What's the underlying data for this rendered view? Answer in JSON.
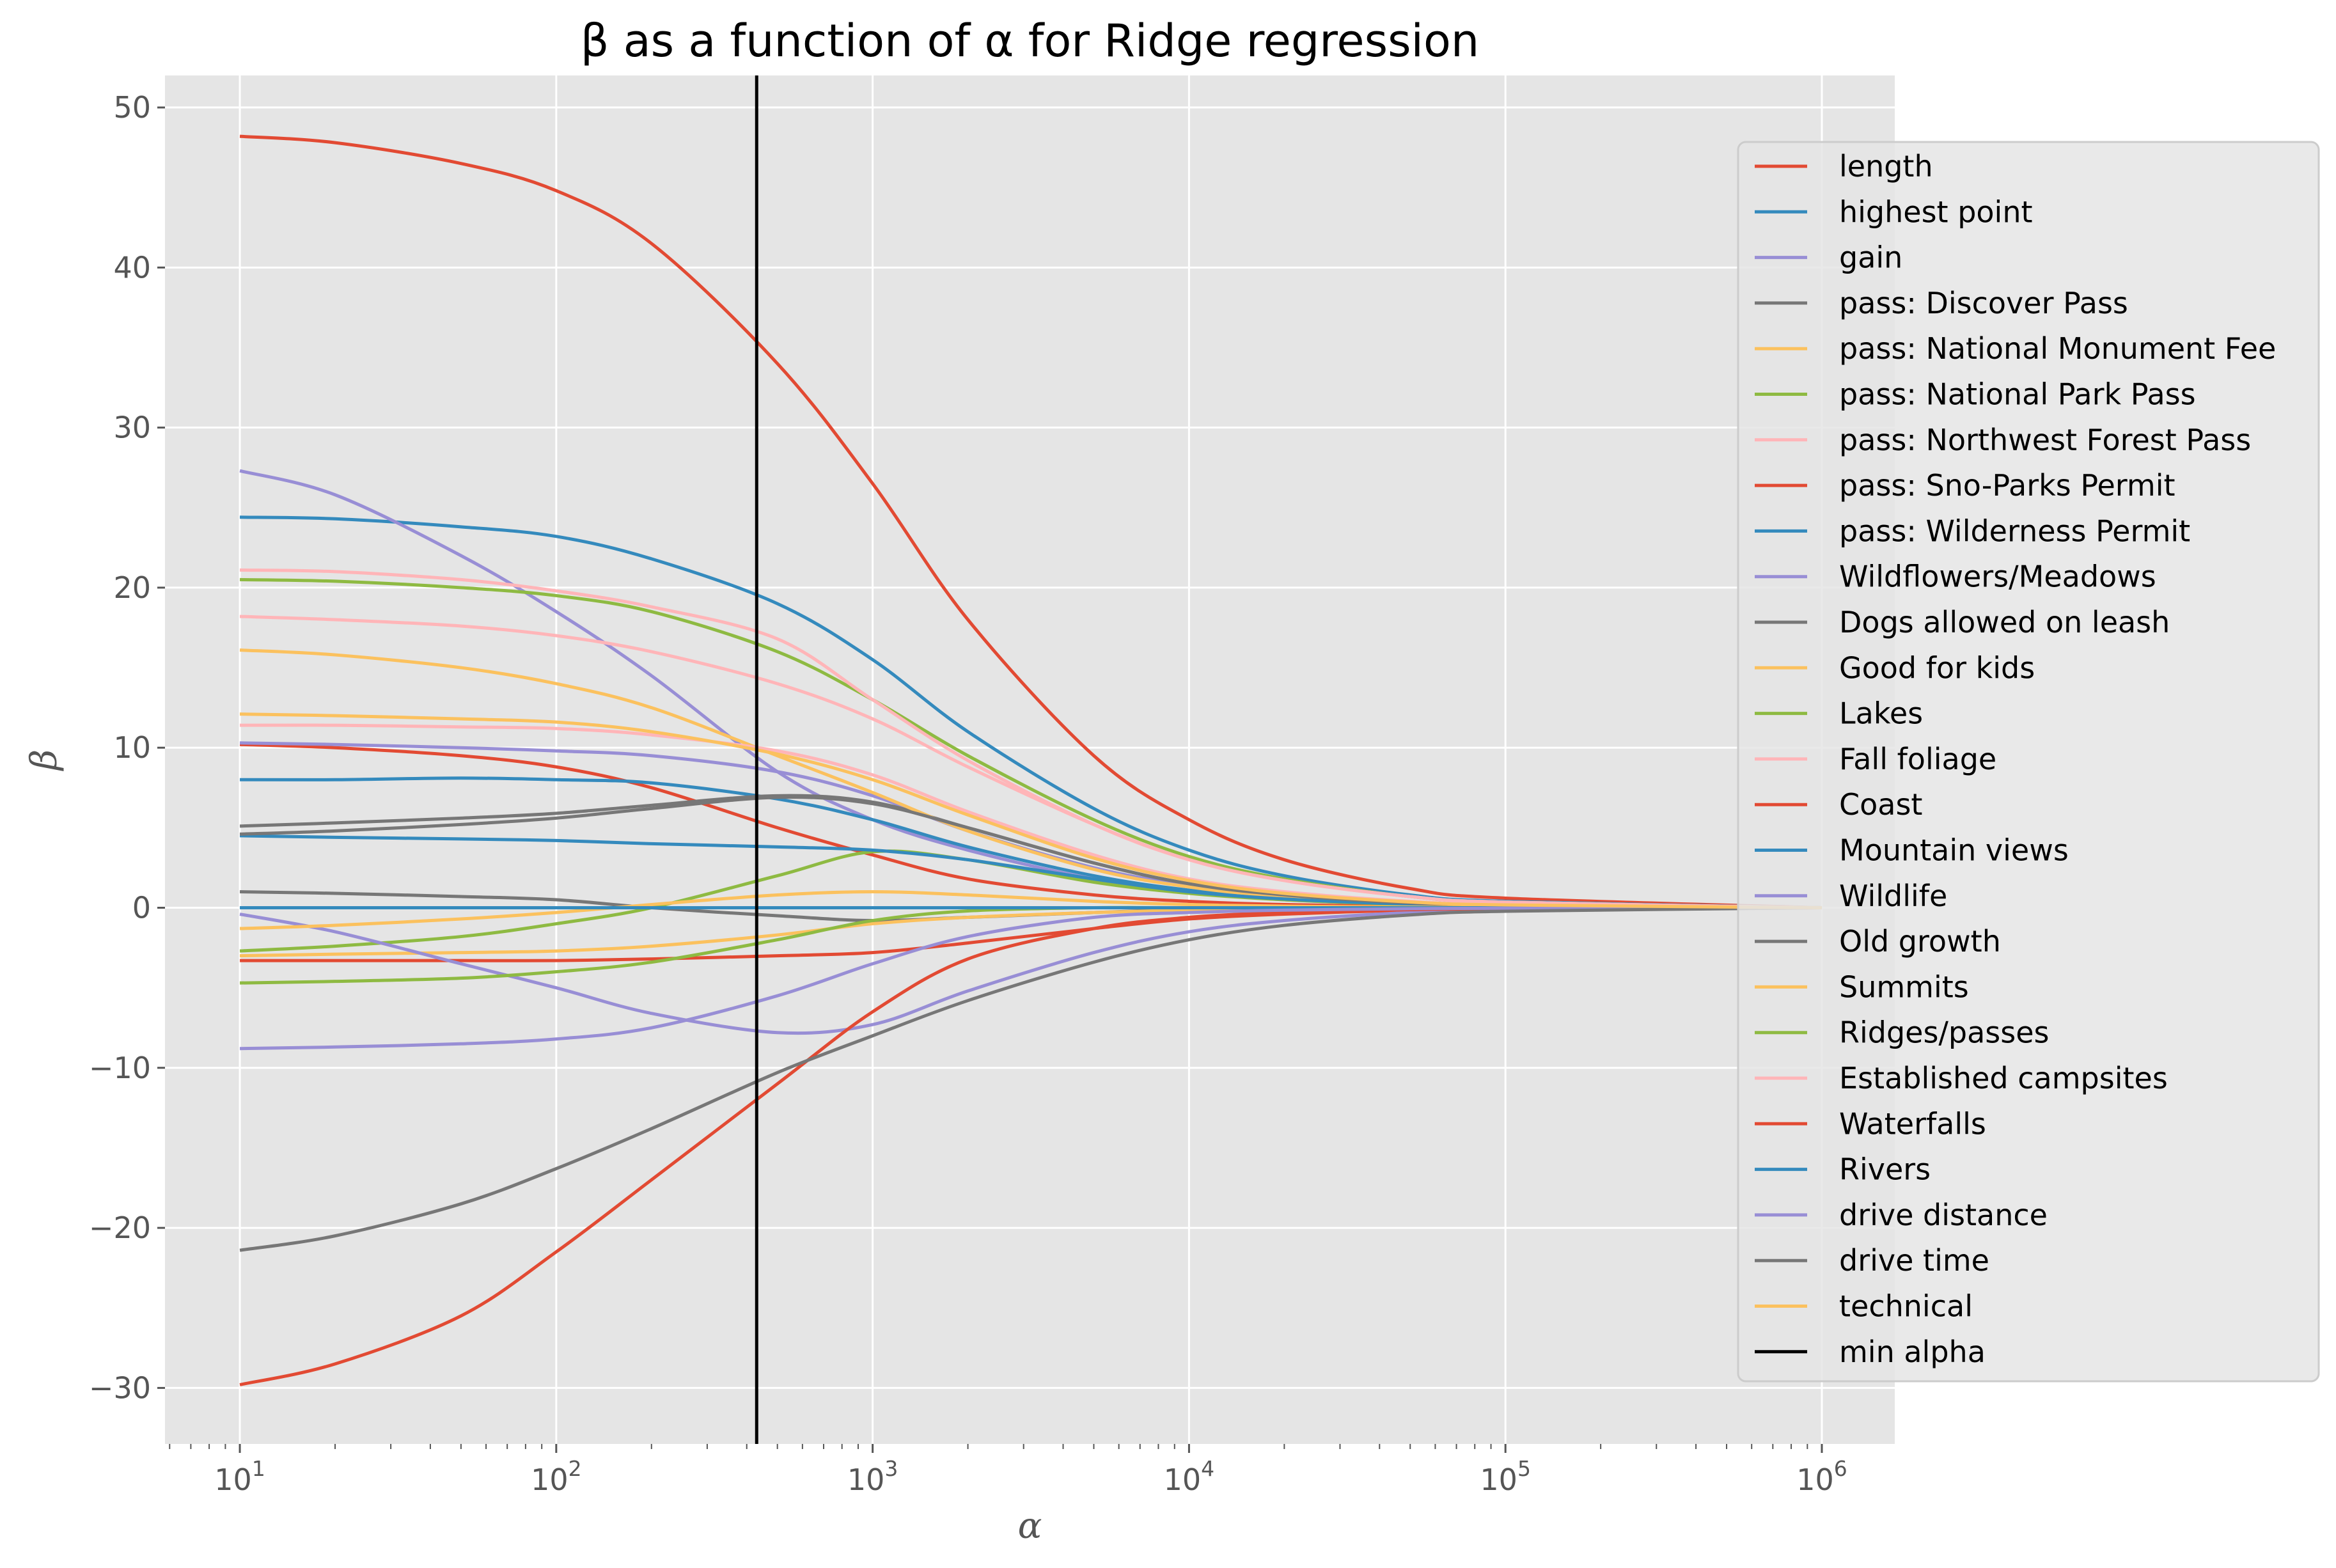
{
  "chart_data": {
    "type": "line",
    "title": "β as a function of α for Ridge regression",
    "xlabel": "α",
    "ylabel": "β",
    "x_scale": "log",
    "xlim": [
      5.8,
      1700000
    ],
    "ylim": [
      -33.5,
      52
    ],
    "x_ticks": [
      10,
      100,
      1000,
      10000,
      100000,
      1000000
    ],
    "x_tick_labels": [
      {
        "base": "10",
        "exp": "1"
      },
      {
        "base": "10",
        "exp": "2"
      },
      {
        "base": "10",
        "exp": "3"
      },
      {
        "base": "10",
        "exp": "4"
      },
      {
        "base": "10",
        "exp": "5"
      },
      {
        "base": "10",
        "exp": "6"
      }
    ],
    "y_ticks": [
      -30,
      -20,
      -10,
      0,
      10,
      20,
      30,
      40,
      50
    ],
    "y_tick_labels": [
      "−30",
      "−20",
      "−10",
      "0",
      "10",
      "20",
      "30",
      "40",
      "50"
    ],
    "grid": true,
    "background": "#e5e5e5",
    "legend_position": "right",
    "x": [
      10,
      20,
      50,
      100,
      200,
      500,
      1000,
      2000,
      5000,
      10000,
      20000,
      50000,
      100000,
      1000000
    ],
    "series": [
      {
        "name": "length",
        "color": "#E24A33",
        "values": [
          48.2,
          47.8,
          46.5,
          44.8,
          41.5,
          34.0,
          26.5,
          18.0,
          9.5,
          5.5,
          3.0,
          1.2,
          0.6,
          0.0
        ]
      },
      {
        "name": "highest point",
        "color": "#348ABD",
        "values": [
          24.4,
          24.3,
          23.8,
          23.2,
          21.8,
          19.0,
          15.5,
          11.0,
          6.2,
          3.6,
          2.0,
          0.8,
          0.4,
          0.0
        ]
      },
      {
        "name": "gain",
        "color": "#988ED5",
        "values": [
          27.3,
          25.8,
          22.0,
          18.5,
          14.5,
          8.5,
          5.5,
          3.6,
          1.8,
          1.0,
          0.5,
          0.2,
          0.1,
          0.0
        ]
      },
      {
        "name": "pass: Discover Pass",
        "color": "#777777",
        "values": [
          1.0,
          0.9,
          0.7,
          0.5,
          0.0,
          -0.5,
          -0.8,
          -0.6,
          -0.3,
          -0.1,
          -0.05,
          0.0,
          0.0,
          0.0
        ]
      },
      {
        "name": "pass: National Monument Fee",
        "color": "#FBC15E",
        "values": [
          -3.0,
          -2.9,
          -2.8,
          -2.7,
          -2.4,
          -1.7,
          -1.0,
          -0.6,
          -0.3,
          -0.15,
          -0.08,
          -0.03,
          -0.01,
          0.0
        ]
      },
      {
        "name": "pass: National Park Pass",
        "color": "#8EBA42",
        "values": [
          20.5,
          20.4,
          20.0,
          19.5,
          18.5,
          16.0,
          13.0,
          9.5,
          5.5,
          3.2,
          1.8,
          0.7,
          0.35,
          0.0
        ]
      },
      {
        "name": "pass: Northwest Forest Pass",
        "color": "#FFB5B8",
        "values": [
          18.2,
          18.0,
          17.6,
          17.0,
          16.0,
          14.0,
          11.8,
          8.8,
          5.2,
          3.0,
          1.7,
          0.7,
          0.35,
          0.0
        ]
      },
      {
        "name": "pass: Sno-Parks Permit",
        "color": "#E24A33",
        "values": [
          10.2,
          10.0,
          9.5,
          8.8,
          7.5,
          5.0,
          3.3,
          1.8,
          0.8,
          0.4,
          0.2,
          0.08,
          0.04,
          0.0
        ]
      },
      {
        "name": "pass: Wilderness Permit",
        "color": "#348ABD",
        "values": [
          8.0,
          8.0,
          8.1,
          8.0,
          7.8,
          6.8,
          5.5,
          3.8,
          2.0,
          1.1,
          0.6,
          0.25,
          0.12,
          0.0
        ]
      },
      {
        "name": "Wildflowers/Meadows",
        "color": "#988ED5",
        "values": [
          10.3,
          10.2,
          10.0,
          9.8,
          9.5,
          8.5,
          7.0,
          4.8,
          2.5,
          1.4,
          0.75,
          0.3,
          0.15,
          0.0
        ]
      },
      {
        "name": "Dogs allowed on leash",
        "color": "#777777",
        "values": [
          5.1,
          5.3,
          5.6,
          5.9,
          6.4,
          7.0,
          6.6,
          5.0,
          2.8,
          1.5,
          0.8,
          0.3,
          0.15,
          0.0
        ]
      },
      {
        "name": "Good for kids",
        "color": "#FBC15E",
        "values": [
          16.1,
          15.8,
          15.0,
          14.0,
          12.5,
          9.5,
          7.2,
          4.8,
          2.4,
          1.3,
          0.7,
          0.28,
          0.14,
          0.0
        ]
      },
      {
        "name": "Lakes",
        "color": "#8EBA42",
        "values": [
          -2.7,
          -2.4,
          -1.8,
          -1.0,
          0.0,
          2.0,
          3.5,
          3.0,
          1.6,
          0.9,
          0.5,
          0.2,
          0.1,
          0.0
        ]
      },
      {
        "name": "Fall foliage",
        "color": "#FFB5B8",
        "values": [
          21.1,
          21.0,
          20.5,
          19.8,
          18.8,
          16.8,
          13.0,
          9.2,
          5.2,
          3.0,
          1.7,
          0.7,
          0.35,
          0.0
        ]
      },
      {
        "name": "Coast",
        "color": "#E24A33",
        "values": [
          -3.3,
          -3.3,
          -3.3,
          -3.3,
          -3.2,
          -3.0,
          -2.8,
          -2.2,
          -1.3,
          -0.7,
          -0.4,
          -0.15,
          -0.08,
          0.0
        ]
      },
      {
        "name": "Mountain views",
        "color": "#348ABD",
        "values": [
          4.5,
          4.4,
          4.3,
          4.2,
          4.0,
          3.8,
          3.6,
          3.0,
          1.8,
          1.0,
          0.55,
          0.22,
          0.1,
          0.0
        ]
      },
      {
        "name": "Wildlife",
        "color": "#988ED5",
        "values": [
          -0.4,
          -1.5,
          -3.5,
          -5.0,
          -6.6,
          -7.8,
          -7.3,
          -5.2,
          -2.8,
          -1.5,
          -0.8,
          -0.3,
          -0.15,
          0.0
        ]
      },
      {
        "name": "Old growth",
        "color": "#777777",
        "values": [
          4.6,
          4.8,
          5.2,
          5.6,
          6.2,
          6.9,
          6.5,
          5.0,
          2.8,
          1.5,
          0.8,
          0.3,
          0.15,
          0.0
        ]
      },
      {
        "name": "Summits",
        "color": "#FBC15E",
        "values": [
          -1.3,
          -1.1,
          -0.7,
          -0.3,
          0.2,
          0.8,
          1.0,
          0.8,
          0.4,
          0.2,
          0.1,
          0.04,
          0.02,
          0.0
        ]
      },
      {
        "name": "Ridges/passes",
        "color": "#8EBA42",
        "values": [
          -4.7,
          -4.6,
          -4.4,
          -4.0,
          -3.4,
          -2.0,
          -0.8,
          -0.2,
          0.0,
          0.0,
          0.0,
          0.0,
          0.0,
          0.0
        ]
      },
      {
        "name": "Established campsites",
        "color": "#FFB5B8",
        "values": [
          11.4,
          11.4,
          11.3,
          11.2,
          10.8,
          9.8,
          8.3,
          6.0,
          3.3,
          1.8,
          1.0,
          0.4,
          0.2,
          0.0
        ]
      },
      {
        "name": "Waterfalls",
        "color": "#E24A33",
        "values": [
          -29.8,
          -28.5,
          -25.5,
          -21.5,
          -17.0,
          -11.0,
          -6.5,
          -3.2,
          -1.3,
          -0.6,
          -0.3,
          -0.12,
          -0.06,
          0.0
        ]
      },
      {
        "name": "Rivers",
        "color": "#348ABD",
        "values": [
          0.0,
          0.0,
          0.0,
          0.0,
          0.0,
          0.0,
          0.0,
          0.0,
          0.0,
          0.0,
          0.0,
          0.0,
          0.0,
          0.0
        ]
      },
      {
        "name": "drive distance",
        "color": "#988ED5",
        "values": [
          -8.8,
          -8.7,
          -8.5,
          -8.2,
          -7.5,
          -5.5,
          -3.5,
          -1.8,
          -0.6,
          -0.3,
          -0.15,
          -0.06,
          -0.03,
          0.0
        ]
      },
      {
        "name": "drive time",
        "color": "#777777",
        "values": [
          -21.4,
          -20.5,
          -18.5,
          -16.3,
          -13.8,
          -10.3,
          -8.0,
          -5.8,
          -3.4,
          -2.0,
          -1.1,
          -0.45,
          -0.22,
          0.0
        ]
      },
      {
        "name": "technical",
        "color": "#FBC15E",
        "values": [
          12.1,
          12.0,
          11.8,
          11.6,
          11.0,
          9.6,
          8.0,
          5.8,
          3.1,
          1.7,
          0.9,
          0.36,
          0.18,
          0.0
        ]
      }
    ],
    "vline": {
      "name": "min alpha",
      "x": 430,
      "color": "#000000"
    },
    "legend_entries": [
      "length",
      "highest point",
      "gain",
      "pass: Discover Pass",
      "pass: National Monument Fee",
      "pass: National Park Pass",
      "pass: Northwest Forest Pass",
      "pass: Sno-Parks Permit",
      "pass: Wilderness Permit",
      "Wildflowers/Meadows",
      "Dogs allowed on leash",
      "Good for kids",
      "Lakes",
      "Fall foliage",
      "Coast",
      "Mountain views",
      "Wildlife",
      "Old growth",
      "Summits",
      "Ridges/passes",
      "Established campsites",
      "Waterfalls",
      "Rivers",
      "drive distance",
      "drive time",
      "technical",
      "min alpha"
    ]
  }
}
